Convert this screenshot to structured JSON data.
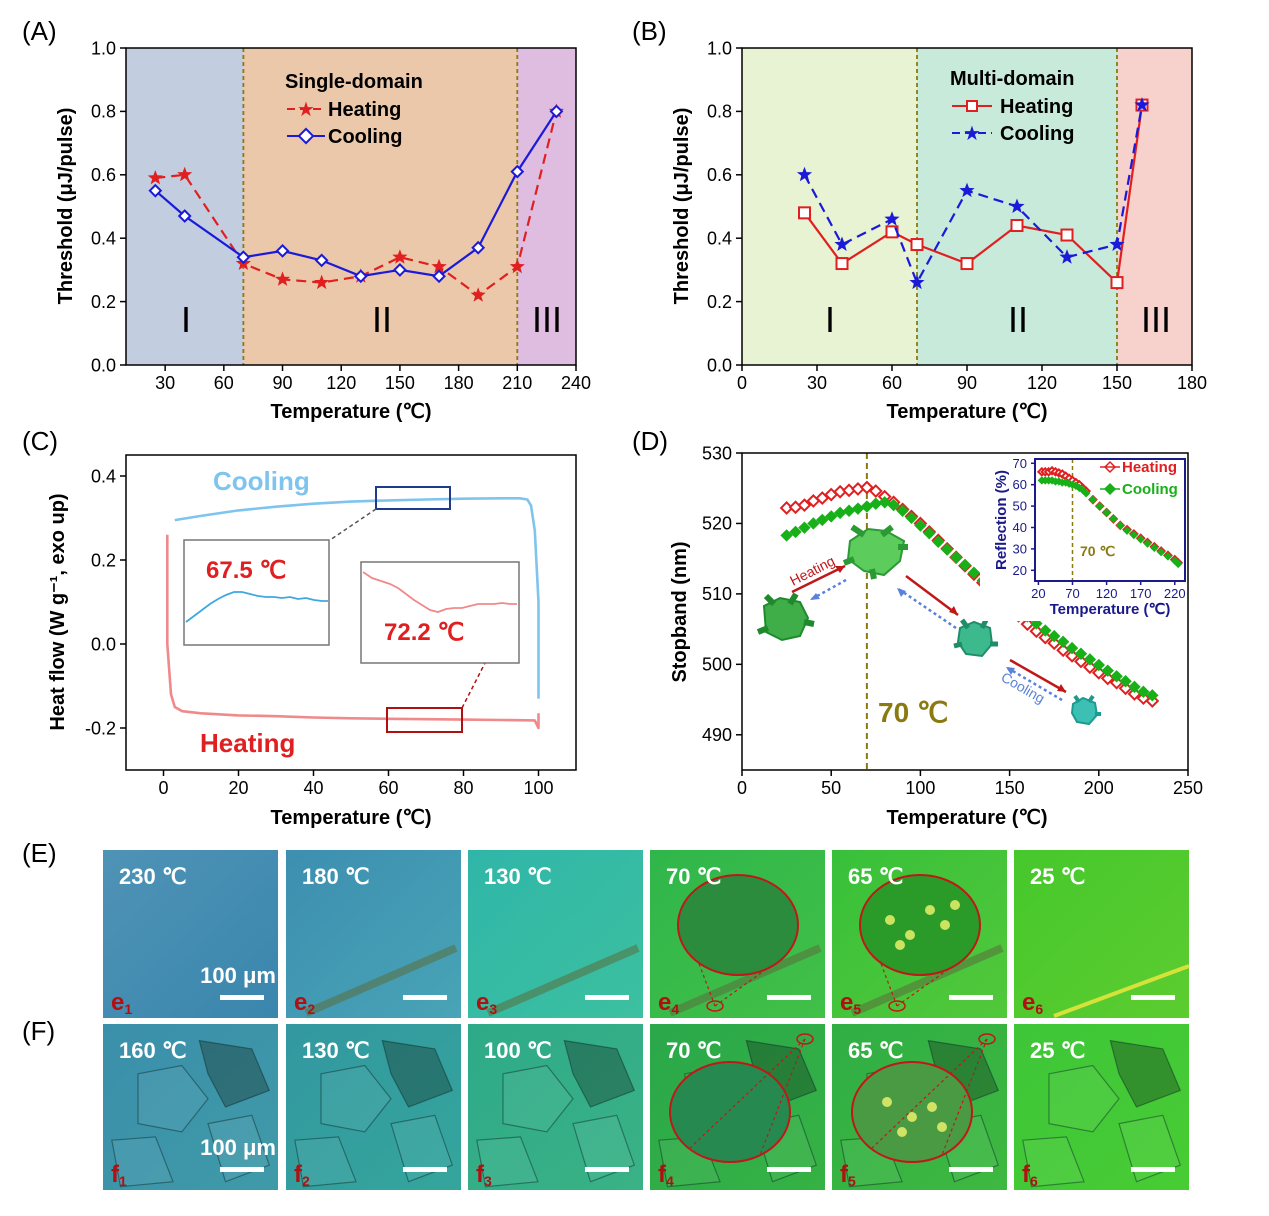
{
  "panel_labels": {
    "A": "(A)",
    "B": "(B)",
    "C": "(C)",
    "D": "(D)",
    "E": "(E)",
    "F": "(F)"
  },
  "colors": {
    "heating_red": "#e02020",
    "cooling_blue": "#1a1ad8",
    "dsc_blue": "#7ec4ee",
    "dsc_pink": "#f08a8a",
    "green": "#18b018",
    "olive": "#8a7a10",
    "region1_A": "#c2cde0",
    "region2_A": "#ecc8aa",
    "region3_A": "#dfbde0",
    "region1_B": "#e7f3d3",
    "region2_B": "#c8eadb",
    "region3_B": "#f7d1cc"
  },
  "chart_data": [
    {
      "id": "A",
      "type": "line",
      "xlabel": "Temperature (℃)",
      "ylabel": "Threshold (μJ/pulse)",
      "xlim": [
        10,
        240
      ],
      "ylim": [
        0.0,
        1.0
      ],
      "xticks": [
        30,
        60,
        90,
        120,
        150,
        180,
        210,
        240
      ],
      "yticks": [
        0.0,
        0.2,
        0.4,
        0.6,
        0.8,
        1.0
      ],
      "ytick_labels": [
        "0.0",
        "0.2",
        "0.4",
        "0.6",
        "0.8",
        "1.0"
      ],
      "regions": [
        {
          "label": "I",
          "from": 10,
          "to": 70
        },
        {
          "label": "II",
          "from": 70,
          "to": 210
        },
        {
          "label": "III",
          "from": 210,
          "to": 240
        }
      ],
      "legend_title": "Single-domain",
      "series": [
        {
          "name": "Heating",
          "style": "dashed",
          "marker": "star",
          "x": [
            25,
            40,
            70,
            90,
            110,
            130,
            150,
            170,
            190,
            210,
            230
          ],
          "y": [
            0.59,
            0.6,
            0.32,
            0.27,
            0.26,
            0.28,
            0.34,
            0.31,
            0.22,
            0.31,
            0.8
          ]
        },
        {
          "name": "Cooling",
          "style": "solid",
          "marker": "diamond",
          "x": [
            25,
            40,
            70,
            90,
            110,
            130,
            150,
            170,
            190,
            210,
            230
          ],
          "y": [
            0.55,
            0.47,
            0.34,
            0.36,
            0.33,
            0.28,
            0.3,
            0.28,
            0.37,
            0.61,
            0.8
          ]
        }
      ]
    },
    {
      "id": "B",
      "type": "line",
      "xlabel": "Temperature (℃)",
      "ylabel": "Threshold (μJ/pulse)",
      "xlim": [
        0,
        180
      ],
      "ylim": [
        0.0,
        1.0
      ],
      "xticks": [
        0,
        30,
        60,
        90,
        120,
        150,
        180
      ],
      "yticks": [
        0.0,
        0.2,
        0.4,
        0.6,
        0.8,
        1.0
      ],
      "ytick_labels": [
        "0.0",
        "0.2",
        "0.4",
        "0.6",
        "0.8",
        "1.0"
      ],
      "regions": [
        {
          "label": "I",
          "from": 0,
          "to": 70
        },
        {
          "label": "II",
          "from": 70,
          "to": 150
        },
        {
          "label": "III",
          "from": 150,
          "to": 180
        }
      ],
      "legend_title": "Multi-domain",
      "series": [
        {
          "name": "Heating",
          "style": "solid",
          "marker": "square",
          "x": [
            25,
            40,
            60,
            70,
            90,
            110,
            130,
            150,
            160
          ],
          "y": [
            0.48,
            0.32,
            0.42,
            0.38,
            0.32,
            0.44,
            0.41,
            0.26,
            0.82
          ]
        },
        {
          "name": "Cooling",
          "style": "dashed",
          "marker": "star",
          "x": [
            25,
            40,
            60,
            70,
            90,
            110,
            130,
            150,
            160
          ],
          "y": [
            0.6,
            0.38,
            0.46,
            0.26,
            0.55,
            0.5,
            0.34,
            0.38,
            0.82
          ]
        }
      ]
    },
    {
      "id": "C",
      "type": "line",
      "xlabel": "Temperature (℃)",
      "ylabel": "Heat flow (W g⁻¹, exo up)",
      "xlim": [
        -10,
        110
      ],
      "ylim": [
        -0.3,
        0.45
      ],
      "xticks": [
        0,
        20,
        40,
        60,
        80,
        100
      ],
      "yticks": [
        -0.2,
        0.0,
        0.2,
        0.4
      ],
      "ytick_labels": [
        "-0.2",
        "0.0",
        "0.2",
        "0.4"
      ],
      "series": [
        {
          "name": "Cooling",
          "x": [
            3,
            10,
            20,
            30,
            40,
            50,
            60,
            70,
            80,
            90,
            95,
            97,
            98,
            99,
            100,
            100
          ],
          "y": [
            0.295,
            0.305,
            0.318,
            0.327,
            0.334,
            0.339,
            0.342,
            0.344,
            0.346,
            0.347,
            0.347,
            0.344,
            0.33,
            0.27,
            0.1,
            -0.13
          ]
        },
        {
          "name": "Heating",
          "x": [
            1,
            1,
            2,
            3,
            5,
            10,
            20,
            30,
            40,
            50,
            60,
            70,
            80,
            90,
            99,
            100,
            100
          ],
          "y": [
            0.26,
            0.0,
            -0.12,
            -0.15,
            -0.16,
            -0.165,
            -0.17,
            -0.172,
            -0.175,
            -0.177,
            -0.178,
            -0.179,
            -0.18,
            -0.181,
            -0.182,
            -0.2,
            -0.165
          ]
        }
      ],
      "insets": [
        {
          "label": "67.5 ℃"
        },
        {
          "label": "72.2 ℃"
        }
      ]
    },
    {
      "id": "D",
      "type": "scatter",
      "xlabel": "Temperature (℃)",
      "ylabel": "Stopband (nm)",
      "xlim": [
        0,
        250
      ],
      "ylim": [
        485,
        530
      ],
      "xticks": [
        0,
        50,
        100,
        150,
        200,
        250
      ],
      "yticks": [
        490,
        500,
        510,
        520,
        530
      ],
      "ytick_labels": [
        "490",
        "500",
        "510",
        "520",
        "530"
      ],
      "vline_label": "70 ℃",
      "annotations": {
        "heating": "Heating",
        "cooling": "Cooling"
      },
      "series": [
        {
          "name": "Heating",
          "marker": "open-diamond",
          "x": [
            25,
            30,
            35,
            40,
            45,
            50,
            55,
            60,
            65,
            70,
            75,
            80,
            85,
            90,
            95,
            100,
            105,
            110,
            115,
            120,
            125,
            130,
            135,
            140,
            145,
            150,
            155,
            160,
            165,
            170,
            175,
            180,
            185,
            190,
            195,
            200,
            205,
            210,
            215,
            220,
            225,
            230
          ],
          "y": [
            522.2,
            522.3,
            522.6,
            523.2,
            523.6,
            524.1,
            524.5,
            524.7,
            524.9,
            525.1,
            524.6,
            523.8,
            523.0,
            522.0,
            521.0,
            520.0,
            518.8,
            517.6,
            516.4,
            515.2,
            514.0,
            512.8,
            511.6,
            510.4,
            509.2,
            508.0,
            506.9,
            505.7,
            504.7,
            503.8,
            503.0,
            502.0,
            501.2,
            500.4,
            499.6,
            498.8,
            498.0,
            497.4,
            496.6,
            495.8,
            495.2,
            494.8
          ]
        },
        {
          "name": "Cooling",
          "marker": "filled-diamond",
          "x": [
            25,
            30,
            35,
            40,
            45,
            50,
            55,
            60,
            65,
            70,
            75,
            80,
            85,
            90,
            95,
            100,
            105,
            110,
            115,
            120,
            125,
            130,
            135,
            140,
            145,
            150,
            155,
            160,
            165,
            170,
            175,
            180,
            185,
            190,
            195,
            200,
            205,
            210,
            215,
            220,
            225,
            230
          ],
          "y": [
            518.3,
            518.8,
            519.4,
            520.0,
            520.5,
            521.0,
            521.5,
            521.8,
            522.1,
            522.4,
            522.8,
            523.0,
            522.6,
            521.8,
            520.8,
            519.7,
            518.6,
            517.4,
            516.3,
            515.2,
            514.1,
            513.0,
            511.9,
            510.8,
            509.8,
            508.8,
            507.8,
            506.8,
            505.8,
            504.8,
            504.0,
            503.2,
            502.3,
            501.5,
            500.7,
            499.9,
            499.1,
            498.3,
            497.6,
            496.8,
            496.1,
            495.6
          ]
        }
      ]
    },
    {
      "id": "D-inset",
      "type": "scatter",
      "xlabel": "Temperature (℃)",
      "ylabel": "Reflection (%)",
      "xlim": [
        15,
        235
      ],
      "ylim": [
        15,
        72
      ],
      "xticks": [
        20,
        70,
        120,
        170,
        220
      ],
      "yticks": [
        20,
        30,
        40,
        50,
        60,
        70
      ],
      "ytick_labels": [
        "20",
        "30",
        "40",
        "50",
        "60",
        "70"
      ],
      "vline_label": "70 ℃",
      "series": [
        {
          "name": "Heating",
          "marker": "open-diamond",
          "x": [
            25,
            30,
            35,
            40,
            45,
            50,
            55,
            60,
            65,
            70,
            75,
            80,
            85,
            90,
            100,
            110,
            120,
            130,
            140,
            150,
            160,
            170,
            180,
            190,
            200,
            210,
            220,
            225
          ],
          "y": [
            66,
            66,
            66,
            66.5,
            66,
            65.5,
            65,
            64,
            63,
            62,
            61,
            60,
            58.5,
            57,
            53,
            50,
            47,
            44,
            41,
            39,
            37,
            35,
            33,
            31,
            29,
            27,
            25,
            23.5
          ]
        },
        {
          "name": "Cooling",
          "marker": "filled-diamond",
          "x": [
            25,
            30,
            35,
            40,
            45,
            50,
            55,
            60,
            65,
            70,
            75,
            80,
            85,
            90,
            100,
            110,
            120,
            130,
            140,
            150,
            160,
            170,
            180,
            190,
            200,
            210,
            220,
            225
          ],
          "y": [
            62,
            62,
            62,
            62,
            61.5,
            61.5,
            61,
            61,
            60.5,
            60,
            59.5,
            58.5,
            57.5,
            56,
            53,
            50,
            47,
            44,
            41,
            38.5,
            36.5,
            34.5,
            32.5,
            30.5,
            28.5,
            26.5,
            24.5,
            23
          ]
        }
      ]
    }
  ],
  "rows": [
    {
      "id": "E",
      "photos": [
        {
          "temp": "230 ℃",
          "id": "e",
          "sub": "1",
          "scale": "100 μm"
        },
        {
          "temp": "180 ℃",
          "id": "e",
          "sub": "2"
        },
        {
          "temp": "130 ℃",
          "id": "e",
          "sub": "3"
        },
        {
          "temp": "70 ℃",
          "id": "e",
          "sub": "4"
        },
        {
          "temp": "65 ℃",
          "id": "e",
          "sub": "5"
        },
        {
          "temp": "25 ℃",
          "id": "e",
          "sub": "6"
        }
      ]
    },
    {
      "id": "F",
      "photos": [
        {
          "temp": "160 ℃",
          "id": "f",
          "sub": "1",
          "scale": "100 μm"
        },
        {
          "temp": "130 ℃",
          "id": "f",
          "sub": "2"
        },
        {
          "temp": "100 ℃",
          "id": "f",
          "sub": "3"
        },
        {
          "temp": "70 ℃",
          "id": "f",
          "sub": "4"
        },
        {
          "temp": "65 ℃",
          "id": "f",
          "sub": "5"
        },
        {
          "temp": "25 ℃",
          "id": "f",
          "sub": "6"
        }
      ]
    }
  ]
}
